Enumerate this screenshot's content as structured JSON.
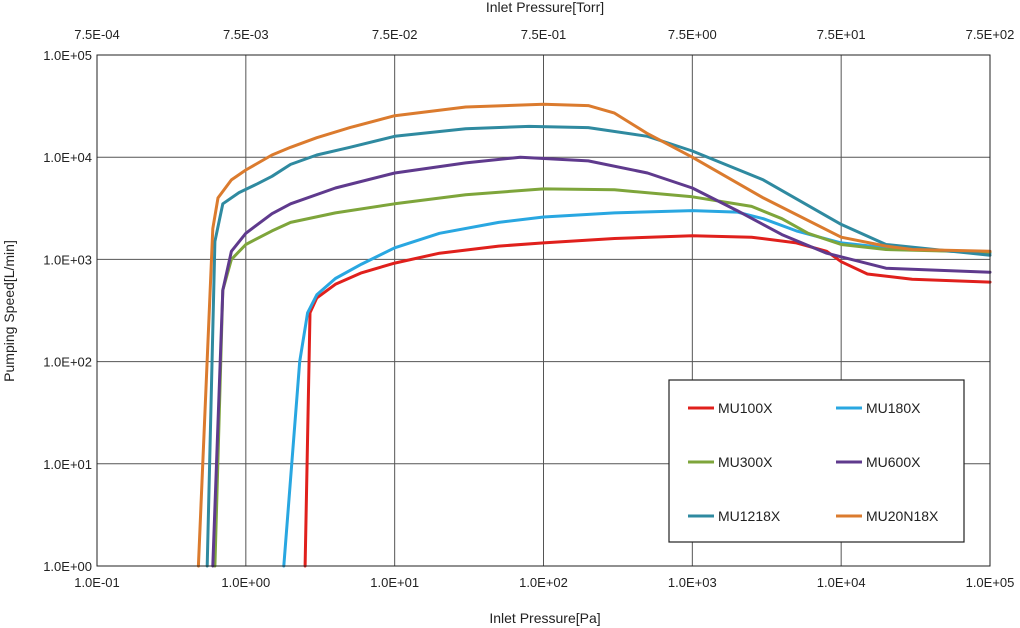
{
  "chart_data": {
    "type": "line",
    "title": "",
    "xlabel": "Inlet Pressure[Pa]",
    "ylabel": "Pumping Speed[L/min]",
    "x2label": "Inlet Pressure[Torr]",
    "xscale": "log",
    "yscale": "log",
    "xlim": [
      0.1,
      100000
    ],
    "ylim": [
      1,
      100000
    ],
    "grid": true,
    "legend_position": "bottom-right",
    "x_ticks": [
      "1.0E-01",
      "1.0E+00",
      "1.0E+01",
      "1.0E+02",
      "1.0E+03",
      "1.0E+04",
      "1.0E+05"
    ],
    "x2_ticks": [
      "7.5E-04",
      "7.5E-03",
      "7.5E-02",
      "7.5E-01",
      "7.5E+00",
      "7.5E+01",
      "7.5E+02"
    ],
    "y_ticks": [
      "1.0E+00",
      "1.0E+01",
      "1.0E+02",
      "1.0E+03",
      "1.0E+04",
      "1.0E+05"
    ],
    "series": [
      {
        "name": "MU100X",
        "color": "#e0201c",
        "x": [
          2.5,
          2.7,
          3,
          4,
          6,
          10,
          20,
          50,
          100,
          300,
          1000,
          2500,
          5000,
          8000,
          10000,
          15000,
          30000,
          100000
        ],
        "y": [
          1,
          300,
          420,
          570,
          740,
          920,
          1150,
          1350,
          1450,
          1600,
          1700,
          1650,
          1450,
          1200,
          950,
          720,
          640,
          600
        ]
      },
      {
        "name": "MU180X",
        "color": "#29a7e1",
        "x": [
          1.8,
          2.3,
          2.6,
          3,
          4,
          6,
          10,
          20,
          50,
          100,
          300,
          1000,
          2000,
          3000,
          5000,
          10000,
          20000,
          100000
        ],
        "y": [
          1,
          100,
          300,
          450,
          650,
          900,
          1300,
          1800,
          2300,
          2600,
          2850,
          3000,
          2900,
          2500,
          1900,
          1450,
          1300,
          1150
        ]
      },
      {
        "name": "MU300X",
        "color": "#7ea53b",
        "x": [
          0.62,
          0.7,
          0.8,
          1,
          1.5,
          2,
          4,
          10,
          30,
          100,
          300,
          1000,
          2500,
          4000,
          6000,
          10000,
          20000,
          100000
        ],
        "y": [
          1,
          500,
          1000,
          1400,
          1900,
          2300,
          2850,
          3500,
          4300,
          4900,
          4800,
          4100,
          3300,
          2500,
          1800,
          1400,
          1250,
          1180
        ]
      },
      {
        "name": "MU600X",
        "color": "#5f3a8d",
        "x": [
          0.6,
          0.7,
          0.8,
          1,
          1.5,
          2,
          4,
          10,
          30,
          70,
          200,
          500,
          1000,
          2000,
          4000,
          8000,
          20000,
          100000
        ],
        "y": [
          1,
          500,
          1200,
          1800,
          2800,
          3500,
          5000,
          7000,
          8800,
          10000,
          9200,
          7000,
          5000,
          3000,
          1750,
          1150,
          820,
          750
        ]
      },
      {
        "name": "MU1218X",
        "color": "#2f8aa0",
        "x": [
          0.55,
          0.62,
          0.7,
          0.9,
          1.2,
          1.5,
          2,
          3,
          5,
          10,
          30,
          80,
          200,
          500,
          1000,
          3000,
          10000,
          20000,
          100000
        ],
        "y": [
          1,
          1500,
          3500,
          4500,
          5500,
          6500,
          8500,
          10500,
          12500,
          16000,
          19000,
          20000,
          19500,
          16000,
          11500,
          6000,
          2200,
          1400,
          1100
        ]
      },
      {
        "name": "MU20N18X",
        "color": "#db7b2e",
        "x": [
          0.48,
          0.6,
          0.65,
          0.8,
          1,
          1.5,
          2,
          3,
          5,
          10,
          30,
          100,
          200,
          300,
          500,
          1000,
          3000,
          10000,
          20000,
          30000,
          100000
        ],
        "y": [
          1,
          2000,
          4000,
          6000,
          7500,
          10500,
          12500,
          15500,
          19500,
          25500,
          31000,
          33000,
          32000,
          27000,
          17000,
          10000,
          4000,
          1650,
          1350,
          1250,
          1200
        ]
      }
    ]
  }
}
